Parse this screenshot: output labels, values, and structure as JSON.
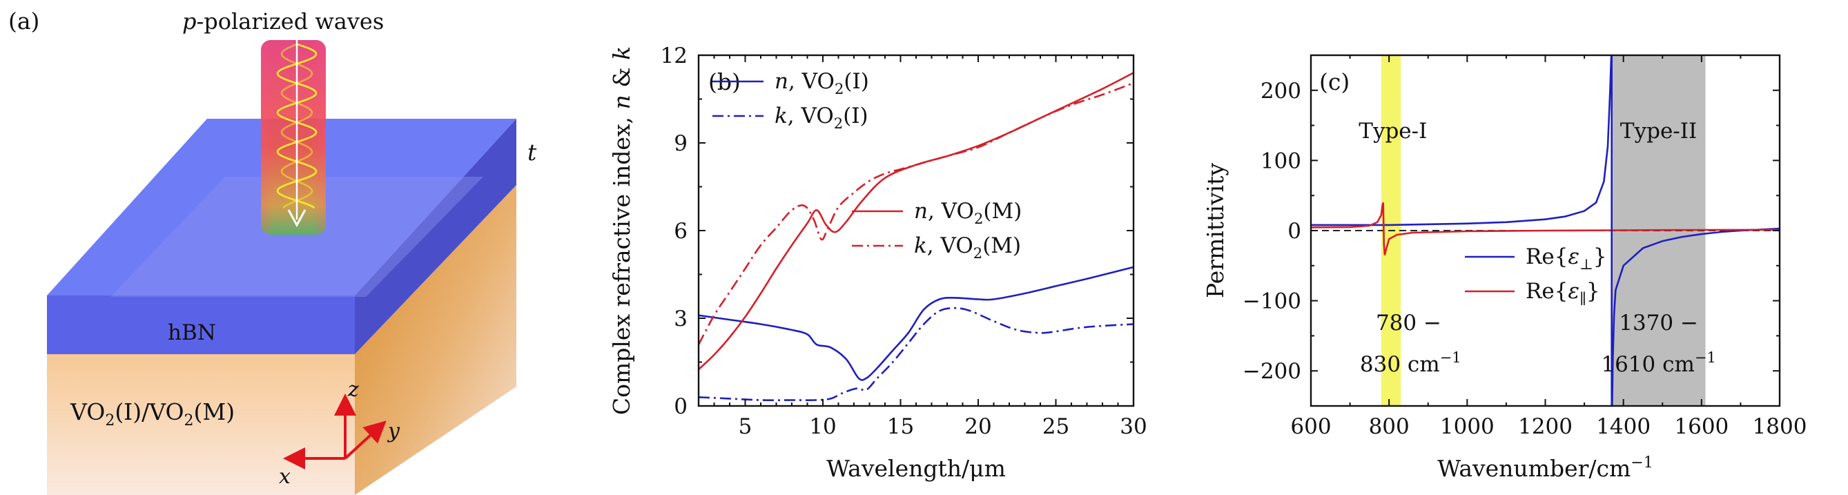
{
  "panel_a": {
    "label": "(a)",
    "incident_label_italic": "p",
    "incident_label_rest": "-polarized waves",
    "top_layer": "hBN",
    "bottom_layer": "VO2(I)/VO2(M)",
    "thickness": "t",
    "axes": {
      "x": "x",
      "y": "y",
      "z": "z"
    }
  },
  "chart_data": [
    {
      "type": "line",
      "panel_label": "(b)",
      "xlabel": "Wavelength/μm",
      "ylabel": "Complex refractive index, n & k",
      "xlim": [
        2,
        30
      ],
      "ylim": [
        0,
        12
      ],
      "xticks": [
        5,
        10,
        15,
        20,
        25,
        30
      ],
      "yticks": [
        0,
        3,
        6,
        9,
        12
      ],
      "legend": [
        {
          "name": "n, VO2(I)",
          "color": "#1f1fbf",
          "dash": "solid",
          "position": "top-left"
        },
        {
          "name": "k, VO2(I)",
          "color": "#1f1fbf",
          "dash": "dashdot",
          "position": "top-left"
        },
        {
          "name": "n, VO2(M)",
          "color": "#d6202a",
          "dash": "solid",
          "position": "middle-right"
        },
        {
          "name": "k, VO2(M)",
          "color": "#d6202a",
          "dash": "dashdot",
          "position": "middle-right"
        }
      ],
      "series": [
        {
          "name": "n, VO2(I)",
          "color": "#1f1fbf",
          "dash": "solid",
          "x": [
            2,
            4,
            6,
            8,
            9,
            9.6,
            10.5,
            11.5,
            12.3,
            12.8,
            13.5,
            14.5,
            15.5,
            16.5,
            17.5,
            18.5,
            20,
            21,
            23,
            25,
            27,
            30
          ],
          "y": [
            3.1,
            2.95,
            2.8,
            2.6,
            2.45,
            2.1,
            2.0,
            1.6,
            0.95,
            0.95,
            1.3,
            1.9,
            2.5,
            3.3,
            3.65,
            3.7,
            3.65,
            3.65,
            3.85,
            4.1,
            4.35,
            4.75
          ]
        },
        {
          "name": "k, VO2(I)",
          "color": "#1f1fbf",
          "dash": "dashdot",
          "x": [
            2,
            4,
            6,
            8,
            9.5,
            10.5,
            11.3,
            12.2,
            12.8,
            13.5,
            14.5,
            15.5,
            16.5,
            17.5,
            18.5,
            19.5,
            21,
            22.5,
            24,
            25,
            27,
            30
          ],
          "y": [
            0.3,
            0.25,
            0.2,
            0.2,
            0.2,
            0.25,
            0.45,
            0.6,
            0.55,
            0.95,
            1.5,
            2.15,
            2.8,
            3.25,
            3.35,
            3.25,
            2.9,
            2.6,
            2.5,
            2.55,
            2.7,
            2.8
          ]
        },
        {
          "name": "n, VO2(M)",
          "color": "#d6202a",
          "dash": "solid",
          "x": [
            2,
            3,
            4,
            5,
            6,
            7,
            8,
            9,
            9.6,
            10.2,
            10.8,
            11.5,
            12.5,
            14,
            16,
            18,
            20,
            22,
            24,
            26,
            28,
            30
          ],
          "y": [
            1.25,
            1.75,
            2.35,
            3.05,
            3.85,
            4.7,
            5.5,
            6.25,
            6.7,
            6.2,
            5.95,
            6.3,
            7.0,
            7.8,
            8.25,
            8.55,
            8.9,
            9.35,
            9.85,
            10.35,
            10.85,
            11.4
          ]
        },
        {
          "name": "k, VO2(M)",
          "color": "#d6202a",
          "dash": "dashdot",
          "x": [
            2,
            3,
            4,
            5,
            6,
            7,
            8,
            8.8,
            9.4,
            9.9,
            10.3,
            11,
            12,
            13,
            14,
            15,
            16,
            18,
            20,
            22,
            24,
            26,
            28,
            30
          ],
          "y": [
            2.1,
            3.1,
            3.9,
            4.7,
            5.5,
            6.1,
            6.7,
            6.85,
            6.4,
            5.7,
            6.05,
            6.8,
            7.3,
            7.7,
            7.95,
            8.1,
            8.25,
            8.55,
            8.85,
            9.35,
            9.85,
            10.3,
            10.65,
            11.05
          ]
        }
      ]
    },
    {
      "type": "line",
      "panel_label": "(c)",
      "xlabel": "Wavenumber/cm−1",
      "ylabel": "Permittivity",
      "xlim": [
        600,
        1800
      ],
      "ylim": [
        -250,
        250
      ],
      "xticks": [
        600,
        800,
        1000,
        1200,
        1400,
        1600,
        1800
      ],
      "yticks": [
        -200,
        -100,
        0,
        100,
        200
      ],
      "bands": [
        {
          "name": "Type-I",
          "from": 780,
          "to": 830,
          "color": "#f5f56a",
          "range_top": "780 −",
          "range_bottom": "830 cm",
          "unit_sup": "−1"
        },
        {
          "name": "Type-II",
          "from": 1370,
          "to": 1610,
          "color": "#bdbdbd",
          "range_top": "1370 −",
          "range_bottom": "1610 cm",
          "unit_sup": "−1"
        }
      ],
      "zero_line": {
        "value": 0,
        "style": "dashed"
      },
      "legend": [
        {
          "name": "Re{ε⊥}",
          "color": "#1f1fbf",
          "position": "middle-right"
        },
        {
          "name": "Re{ε∥}",
          "color": "#d6202a",
          "position": "middle-right"
        }
      ],
      "series": [
        {
          "name": "Re{ε⊥}",
          "color": "#1f1fbf",
          "x": [
            600,
            800,
            1000,
            1100,
            1200,
            1250,
            1300,
            1330,
            1350,
            1360,
            1366,
            1369,
            1371,
            1373,
            1376,
            1380,
            1400,
            1450,
            1500,
            1550,
            1600,
            1650,
            1700,
            1800
          ],
          "y": [
            8,
            8,
            10,
            12,
            16,
            20,
            28,
            40,
            70,
            120,
            200,
            250,
            -250,
            -180,
            -120,
            -85,
            -50,
            -25,
            -15,
            -9,
            -5,
            -2,
            0,
            3
          ]
        },
        {
          "name": "Re{ε∥}",
          "color": "#d6202a",
          "x": [
            600,
            700,
            750,
            770,
            780,
            783,
            785,
            787,
            789,
            792,
            800,
            820,
            860,
            1000,
            1200,
            1400,
            1600,
            1800
          ],
          "y": [
            4.5,
            5,
            7,
            12,
            22,
            36,
            40,
            -20,
            -35,
            -28,
            -12,
            -6,
            -3,
            -1,
            0,
            0.5,
            1,
            1.2
          ]
        }
      ]
    }
  ]
}
